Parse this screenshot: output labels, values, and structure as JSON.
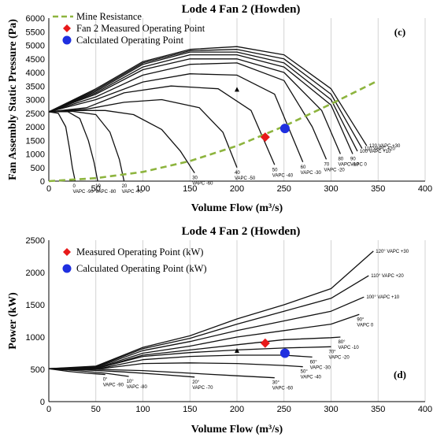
{
  "chart_data": [
    {
      "type": "line",
      "panel_label": "(c)",
      "title": "Lode 4 Fan 2 (Howden)",
      "xlabel": "Volume Flow (m³/s)",
      "ylabel": "Fan Assembly Static Pressure (Pa)",
      "xlim": [
        0,
        400
      ],
      "ylim": [
        0,
        6000
      ],
      "xticks": [
        "0",
        "50",
        "100",
        "150",
        "200",
        "250",
        "300",
        "350",
        "400"
      ],
      "yticks": [
        "0",
        "500",
        "1000",
        "1500",
        "2000",
        "2500",
        "3000",
        "3500",
        "4000",
        "4500",
        "5000",
        "5500",
        "6000"
      ],
      "grid": "vertical",
      "legend": [
        "Mine Resistance",
        "Fan 2 Measured Operating Point",
        "Calculated Operating Point"
      ],
      "mine_resistance": {
        "name": "Mine Resistance",
        "color": "#8db43e",
        "x": [
          0,
          50,
          100,
          150,
          200,
          250,
          300,
          350
        ],
        "y": [
          0,
          110,
          340,
          740,
          1300,
          2020,
          2840,
          3700
        ]
      },
      "measured_point": {
        "name": "Fan 2 Measured Operating Point",
        "x": 230,
        "y": 1620,
        "color": "#e8191a"
      },
      "calculated_point": {
        "name": "Calculated Operating Point",
        "x": 251,
        "y": 1940,
        "color": "#1f2fe0"
      },
      "marker_triangle": {
        "x": 200,
        "y": 3350
      },
      "curves": [
        {
          "label": [
            "0",
            "VAPC -90"
          ],
          "x": [
            0,
            10,
            18,
            22,
            25,
            28
          ],
          "y": [
            2550,
            2500,
            2000,
            1200,
            500,
            0
          ]
        },
        {
          "label": [
            "10",
            "VAPC -80"
          ],
          "x": [
            0,
            20,
            33,
            42,
            48,
            52
          ],
          "y": [
            2550,
            2560,
            2300,
            1500,
            700,
            0
          ]
        },
        {
          "label": [
            "20",
            "VAPC -70"
          ],
          "x": [
            0,
            25,
            50,
            65,
            75,
            80
          ],
          "y": [
            2550,
            2570,
            2450,
            1800,
            800,
            0
          ]
        },
        {
          "label": [
            "30",
            "VAPC -60"
          ],
          "x": [
            0,
            30,
            60,
            90,
            120,
            140,
            155
          ],
          "y": [
            2550,
            2600,
            2600,
            2450,
            1900,
            1100,
            300
          ]
        },
        {
          "label": [
            "40",
            "VAPC -50"
          ],
          "x": [
            0,
            40,
            80,
            120,
            160,
            185,
            200
          ],
          "y": [
            2550,
            2650,
            2900,
            3000,
            2700,
            1800,
            500
          ]
        },
        {
          "label": [
            "50",
            "VAPC -40"
          ],
          "x": [
            0,
            40,
            80,
            130,
            180,
            215,
            240
          ],
          "y": [
            2550,
            2700,
            3250,
            3500,
            3400,
            2600,
            600
          ]
        },
        {
          "label": [
            "60",
            "VAPC -30"
          ],
          "x": [
            0,
            50,
            100,
            150,
            200,
            240,
            270
          ],
          "y": [
            2550,
            3000,
            3650,
            3950,
            3900,
            3200,
            700
          ]
        },
        {
          "label": [
            "70",
            "VAPC -20"
          ],
          "x": [
            0,
            50,
            100,
            150,
            200,
            250,
            280,
            295
          ],
          "y": [
            2550,
            3100,
            3900,
            4300,
            4350,
            3700,
            2000,
            800
          ]
        },
        {
          "label": [
            "80",
            "VAPC -10"
          ],
          "x": [
            0,
            50,
            100,
            150,
            200,
            250,
            290,
            310
          ],
          "y": [
            2550,
            3200,
            4100,
            4500,
            4500,
            4000,
            2600,
            1000
          ]
        },
        {
          "label": [
            "90",
            "VAPC 0"
          ],
          "x": [
            0,
            50,
            100,
            150,
            200,
            250,
            300,
            323
          ],
          "y": [
            2550,
            3250,
            4200,
            4650,
            4650,
            4200,
            2800,
            1000
          ]
        },
        {
          "label": [
            "100 VAPC +10"
          ],
          "x": [
            0,
            50,
            100,
            150,
            200,
            250,
            300,
            328
          ],
          "y": [
            2550,
            3300,
            4300,
            4750,
            4750,
            4350,
            3000,
            1100
          ]
        },
        {
          "label": [
            "110 VAPC +20"
          ],
          "x": [
            0,
            50,
            100,
            150,
            200,
            250,
            300,
            333
          ],
          "y": [
            2550,
            3350,
            4350,
            4800,
            4850,
            4500,
            3200,
            1200
          ]
        },
        {
          "label": [
            "120 VAPC +30"
          ],
          "x": [
            0,
            50,
            100,
            150,
            200,
            250,
            300,
            338
          ],
          "y": [
            2550,
            3400,
            4400,
            4850,
            4950,
            4650,
            3400,
            1300
          ]
        }
      ]
    },
    {
      "type": "line",
      "panel_label": "(d)",
      "title": "Lode 4 Fan 2 (Howden)",
      "xlabel": "Volume Flow (m³/s)",
      "ylabel": "Power (kW)",
      "xlim": [
        0,
        400
      ],
      "ylim": [
        0,
        2500
      ],
      "xticks": [
        "0",
        "50",
        "100",
        "150",
        "200",
        "250",
        "300",
        "350",
        "400"
      ],
      "yticks": [
        "0",
        "500",
        "1000",
        "1500",
        "2000",
        "2500"
      ],
      "grid": "vertical",
      "legend": [
        "Measured Operating Point (kW)",
        "Calculated Operating Point (kW)"
      ],
      "measured_point": {
        "name": "Measured Operating Point (kW)",
        "x": 230,
        "y": 905,
        "color": "#e8191a"
      },
      "calculated_point": {
        "name": "Calculated Operating Point (kW)",
        "x": 251,
        "y": 750,
        "color": "#1f2fe0"
      },
      "marker_triangle": {
        "x": 200,
        "y": 780
      },
      "curves": [
        {
          "label": [
            "0°",
            "VAPC -90"
          ],
          "x": [
            0,
            20,
            40,
            60
          ],
          "y": [
            510,
            470,
            440,
            420
          ]
        },
        {
          "label": [
            "10°",
            "VAPC -80"
          ],
          "x": [
            0,
            30,
            60,
            85
          ],
          "y": [
            510,
            480,
            440,
            390
          ]
        },
        {
          "label": [
            "20°",
            "VAPC -70"
          ],
          "x": [
            0,
            40,
            80,
            120,
            155
          ],
          "y": [
            510,
            490,
            460,
            420,
            380
          ]
        },
        {
          "label": [
            "30°",
            "VAPC -60"
          ],
          "x": [
            0,
            50,
            100,
            150,
            200,
            240
          ],
          "y": [
            510,
            500,
            480,
            440,
            400,
            370
          ]
        },
        {
          "label": [
            "50°",
            "VAPC -40"
          ],
          "x": [
            0,
            50,
            100,
            150,
            200,
            250,
            270
          ],
          "y": [
            510,
            500,
            590,
            600,
            590,
            560,
            540
          ]
        },
        {
          "label": [
            "60°",
            "VAPC -30"
          ],
          "x": [
            0,
            50,
            100,
            150,
            200,
            250,
            280
          ],
          "y": [
            510,
            500,
            650,
            700,
            720,
            720,
            690
          ]
        },
        {
          "label": [
            "70°",
            "VAPC -20"
          ],
          "x": [
            0,
            50,
            100,
            150,
            200,
            250,
            300
          ],
          "y": [
            510,
            510,
            700,
            760,
            800,
            830,
            850
          ]
        },
        {
          "label": [
            "80°",
            "VAPC -10"
          ],
          "x": [
            0,
            50,
            100,
            150,
            200,
            250,
            300,
            310
          ],
          "y": [
            510,
            510,
            720,
            800,
            880,
            960,
            990,
            1000
          ]
        },
        {
          "label": [
            "90°",
            "VAPC 0"
          ],
          "x": [
            0,
            50,
            100,
            150,
            200,
            250,
            300,
            330
          ],
          "y": [
            510,
            520,
            750,
            860,
            1000,
            1100,
            1200,
            1350
          ]
        },
        {
          "label": [
            "100° VAPC +10"
          ],
          "x": [
            0,
            50,
            100,
            150,
            200,
            250,
            300,
            335
          ],
          "y": [
            510,
            530,
            790,
            930,
            1100,
            1250,
            1400,
            1620
          ]
        },
        {
          "label": [
            "110° VAPC +20"
          ],
          "x": [
            0,
            50,
            100,
            150,
            200,
            250,
            300,
            340
          ],
          "y": [
            510,
            540,
            820,
            980,
            1200,
            1400,
            1600,
            1950
          ]
        },
        {
          "label": [
            "120° VAPC +30"
          ],
          "x": [
            0,
            50,
            100,
            150,
            200,
            250,
            300,
            345
          ],
          "y": [
            510,
            550,
            840,
            1020,
            1280,
            1500,
            1750,
            2330
          ]
        }
      ]
    }
  ]
}
